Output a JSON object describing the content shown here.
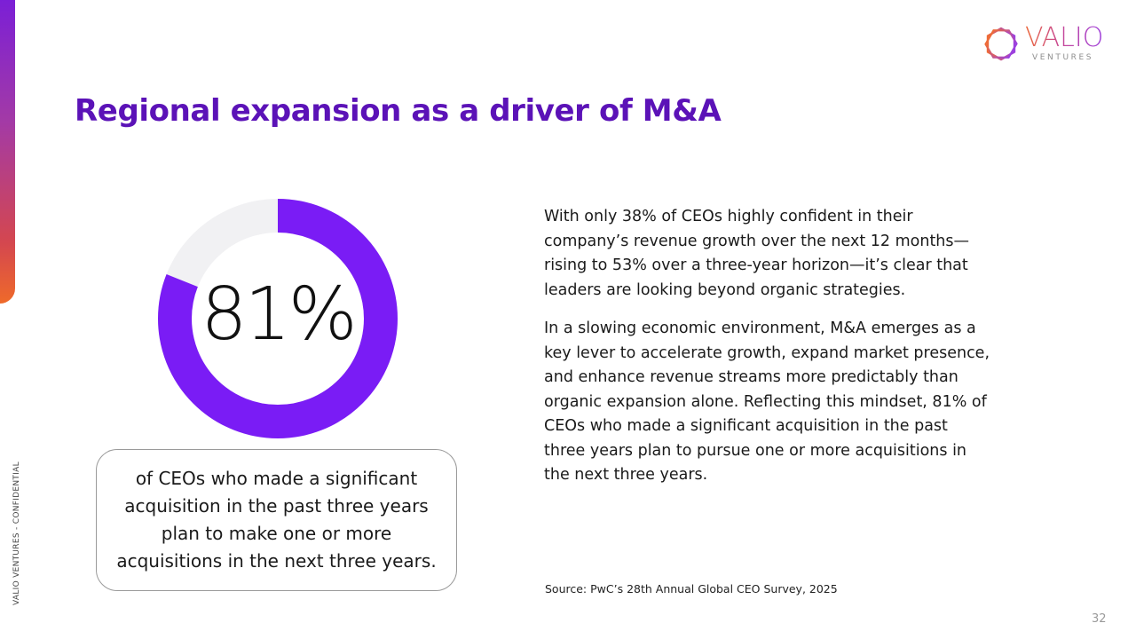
{
  "slide": {
    "title": "Regional expansion as a driver of M&A",
    "side_label": "VALIO VENTURES - CONFIDENTIAL",
    "page_number": "32"
  },
  "logo": {
    "wordmark": "VALIO",
    "subtitle": "VENTURES"
  },
  "stat": {
    "value_text": "81%",
    "fraction": 0.81,
    "caption": "of CEOs who made a significant acquisition in the past three years plan to make one or more acquisitions in the next three years."
  },
  "body": {
    "paragraph_1": "With only 38% of CEOs highly confident in their company’s revenue growth over the next 12 months—rising to 53% over a three-year horizon—it’s clear that leaders are looking beyond organic strategies.",
    "paragraph_2": "In a slowing economic environment, M&A emerges as a key lever to accelerate growth, expand market presence, and enhance revenue streams more predictably than organic expansion alone. Reflecting this mindset, 81% of CEOs who made a significant acquisition in the past three years plan to pursue one or more acquisitions in the next three years."
  },
  "source": "Source: PwC’s 28th Annual Global CEO Survey, 2025",
  "colors": {
    "accent": "#7a1cf5",
    "track": "#f1f1f3",
    "title": "#5b12b7"
  }
}
